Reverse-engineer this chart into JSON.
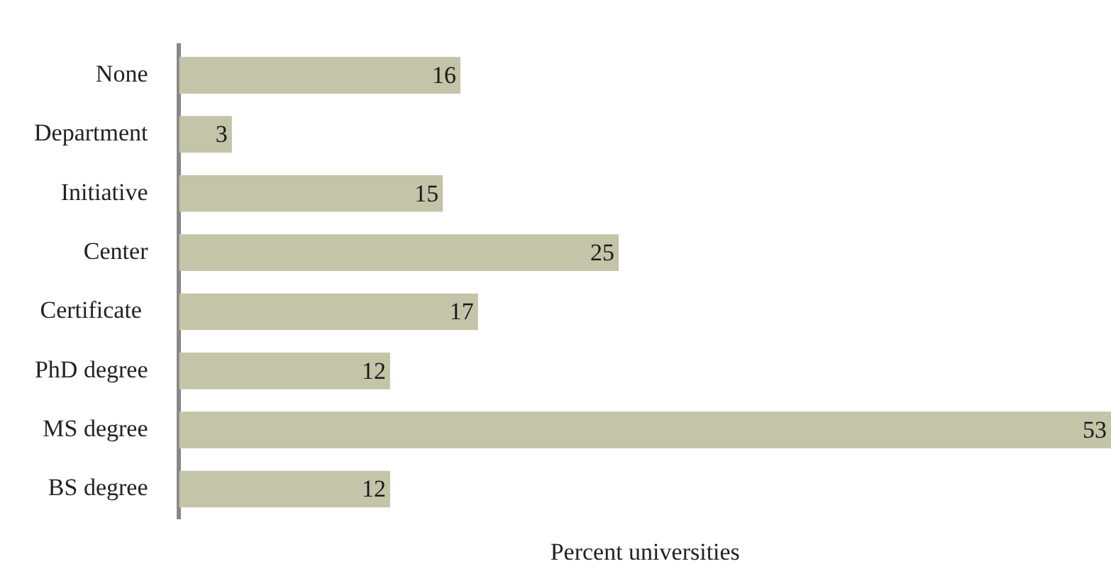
{
  "chart_data": {
    "type": "bar",
    "orientation": "horizontal",
    "xlabel": "Percent universities",
    "categories": [
      "None",
      "Department",
      "Initiative",
      "Center",
      "Certificate ",
      "PhD degree",
      "MS degree",
      "BS degree"
    ],
    "values": [
      16,
      3,
      15,
      25,
      17,
      12,
      53,
      12
    ],
    "color": "#c3c4a8",
    "xlim": [
      0,
      53
    ],
    "data_labels": true,
    "tick_labels": "y"
  }
}
